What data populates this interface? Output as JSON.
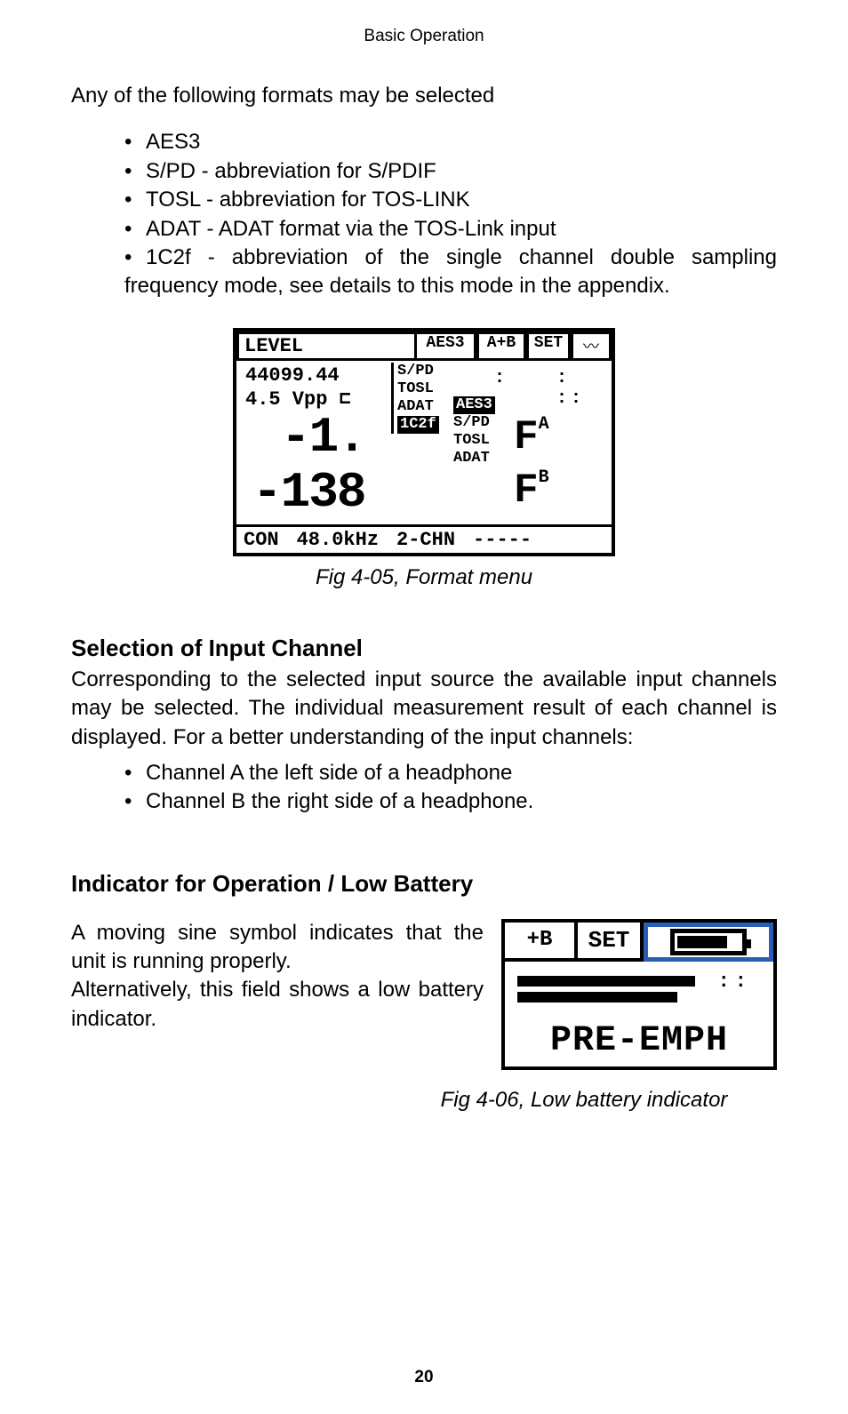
{
  "header": "Basic Operation",
  "intro": "Any of the following formats may be selected",
  "formats": [
    "AES3",
    "S/PD - abbreviation for S/PDIF",
    "TOSL - abbreviation for TOS-LINK",
    "ADAT - ADAT format via the TOS-Link input",
    "1C2f - abbreviation of the single channel double sampling frequency mode, see details to this mode in the appendix."
  ],
  "fig1": {
    "top": {
      "level": "LEVEL",
      "aes3": "AES3",
      "ab": "A+B",
      "set": "SET",
      "wave": "〰"
    },
    "freq": "44099.44",
    "vpp": "4.5 Vpp ⊏",
    "big1": "-1.",
    "big2": "-138",
    "menu1": [
      "S/PD",
      "TOSL",
      "ADAT",
      "1C2f"
    ],
    "menu2_inv": "AES3",
    "menu2": [
      "S/PD",
      "TOSL",
      "ADAT"
    ],
    "fa": "F",
    "fa_sup": "A",
    "fb": "F",
    "fb_sup": "B",
    "dots1": ":",
    "dots2": ": ::",
    "bottom": {
      "con": "CON",
      "khz": "48.0kHz",
      "chn": "2-CHN",
      "dashes": "-----"
    },
    "caption": "Fig 4-05, Format menu"
  },
  "section1": {
    "title": "Selection of Input Channel",
    "body": "Corresponding to the selected input source the available input channels may be selected. The individual measurement result of each channel is displayed. For a better understanding of the input channels:",
    "items": [
      "Channel A the left side of a headphone",
      "Channel B the right side of a headphone."
    ]
  },
  "section2": {
    "title": "Indicator for Operation / Low Battery",
    "body1": "A moving sine symbol indicates that the unit is running properly.",
    "body2": "Alternatively, this field shows a low battery indicator."
  },
  "fig2": {
    "ab": "+B",
    "set": "SET",
    "dots": "::\n::",
    "text": "PRE-EMPH",
    "caption": "Fig 4-06, Low battery indicator"
  },
  "page": "20"
}
